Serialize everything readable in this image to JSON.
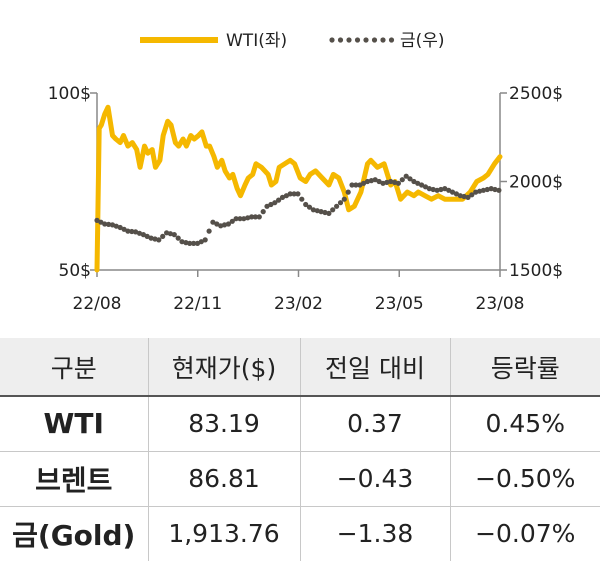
{
  "chart_data": {
    "type": "line",
    "x_ticks": [
      "22/08",
      "22/11",
      "23/02",
      "23/05",
      "23/08"
    ],
    "y_left": {
      "ticks": [
        "50$",
        "100$"
      ],
      "range": [
        50,
        100
      ]
    },
    "y_right": {
      "ticks": [
        "1500$",
        "2000$",
        "2500$"
      ],
      "range": [
        1500,
        2500
      ]
    },
    "series": [
      {
        "name": "WTI(좌)",
        "axis": "left",
        "color": "#f5b800",
        "style": "solid",
        "dates": [
          "2022-08-01",
          "2022-08-03",
          "2022-08-05",
          "2022-08-08",
          "2022-08-11",
          "2022-08-15",
          "2022-08-18",
          "2022-08-22",
          "2022-08-25",
          "2022-08-29",
          "2022-09-02",
          "2022-09-06",
          "2022-09-09",
          "2022-09-13",
          "2022-09-16",
          "2022-09-20",
          "2022-09-23",
          "2022-09-27",
          "2022-09-30",
          "2022-10-04",
          "2022-10-07",
          "2022-10-11",
          "2022-10-14",
          "2022-10-18",
          "2022-10-21",
          "2022-10-25",
          "2022-10-28",
          "2022-11-01",
          "2022-11-04",
          "2022-11-08",
          "2022-11-11",
          "2022-11-15",
          "2022-11-18",
          "2022-11-22",
          "2022-11-25",
          "2022-11-29",
          "2022-12-02",
          "2022-12-06",
          "2022-12-09",
          "2022-12-13",
          "2022-12-16",
          "2022-12-20",
          "2022-12-23",
          "2022-12-28",
          "2023-01-03",
          "2023-01-06",
          "2023-01-10",
          "2023-01-13",
          "2023-01-18",
          "2023-01-23",
          "2023-01-27",
          "2023-02-01",
          "2023-02-06",
          "2023-02-10",
          "2023-02-15",
          "2023-02-21",
          "2023-02-27",
          "2023-03-03",
          "2023-03-08",
          "2023-03-13",
          "2023-03-17",
          "2023-03-22",
          "2023-03-28",
          "2023-04-03",
          "2023-04-06",
          "2023-04-12",
          "2023-04-18",
          "2023-04-24",
          "2023-04-28",
          "2023-05-03",
          "2023-05-09",
          "2023-05-15",
          "2023-05-19",
          "2023-05-25",
          "2023-05-31",
          "2023-06-06",
          "2023-06-12",
          "2023-06-16",
          "2023-06-22",
          "2023-06-28",
          "2023-07-05",
          "2023-07-11",
          "2023-07-17",
          "2023-07-21",
          "2023-07-27",
          "2023-08-01"
        ],
        "values": [
          50,
          90,
          91,
          94,
          96,
          88,
          87,
          86,
          88,
          85,
          86,
          84,
          79,
          85,
          83,
          84,
          79,
          81,
          88,
          92,
          91,
          86,
          85,
          87,
          85,
          88,
          87,
          88,
          89,
          85,
          85,
          82,
          79,
          81,
          78,
          76,
          77,
          73,
          71,
          74,
          76,
          77,
          80,
          79,
          77,
          74,
          75,
          79,
          80,
          81,
          80,
          76,
          75,
          77,
          78,
          76,
          74,
          77,
          76,
          72,
          67,
          68,
          72,
          80,
          81,
          79,
          80,
          74,
          75,
          70,
          72,
          71,
          72,
          71,
          70,
          71,
          70,
          70,
          70,
          70,
          72,
          75,
          76,
          77,
          80,
          82
        ]
      },
      {
        "name": "금(우)",
        "axis": "right",
        "color": "#55504a",
        "style": "dotted",
        "dates": [
          "2022-08-01",
          "2022-08-08",
          "2022-08-15",
          "2022-08-22",
          "2022-08-29",
          "2022-09-05",
          "2022-09-12",
          "2022-09-19",
          "2022-09-26",
          "2022-10-03",
          "2022-10-10",
          "2022-10-17",
          "2022-10-24",
          "2022-10-31",
          "2022-11-07",
          "2022-11-14",
          "2022-11-21",
          "2022-11-28",
          "2022-12-05",
          "2022-12-12",
          "2022-12-19",
          "2022-12-26",
          "2023-01-02",
          "2023-01-09",
          "2023-01-16",
          "2023-01-23",
          "2023-01-30",
          "2023-02-06",
          "2023-02-13",
          "2023-02-20",
          "2023-02-27",
          "2023-03-06",
          "2023-03-13",
          "2023-03-20",
          "2023-03-27",
          "2023-04-03",
          "2023-04-10",
          "2023-04-17",
          "2023-04-24",
          "2023-05-01",
          "2023-05-08",
          "2023-05-15",
          "2023-05-22",
          "2023-05-29",
          "2023-06-05",
          "2023-06-12",
          "2023-06-19",
          "2023-06-26",
          "2023-07-03",
          "2023-07-10",
          "2023-07-17",
          "2023-07-24",
          "2023-07-31"
        ],
        "values": [
          1780,
          1760,
          1755,
          1740,
          1720,
          1715,
          1700,
          1680,
          1670,
          1710,
          1700,
          1660,
          1650,
          1650,
          1670,
          1770,
          1750,
          1760,
          1790,
          1790,
          1800,
          1800,
          1860,
          1880,
          1910,
          1930,
          1930,
          1870,
          1840,
          1830,
          1820,
          1860,
          1900,
          1980,
          1980,
          2000,
          2010,
          1990,
          2000,
          1990,
          2030,
          2000,
          1980,
          1960,
          1950,
          1960,
          1940,
          1920,
          1910,
          1940,
          1950,
          1960,
          1950
        ]
      }
    ],
    "legend": "top"
  },
  "table": {
    "headers": [
      "구분",
      "현재가($)",
      "전일 대비",
      "등락률"
    ],
    "rows": [
      {
        "name": "WTI",
        "price": "83.19",
        "change": "0.37",
        "rate": "0.45%"
      },
      {
        "name": "브렌트",
        "price": "86.81",
        "change": "−0.43",
        "rate": "−0.50%"
      },
      {
        "name": "금(Gold)",
        "price": "1,913.76",
        "change": "−1.38",
        "rate": "−0.07%"
      }
    ]
  }
}
